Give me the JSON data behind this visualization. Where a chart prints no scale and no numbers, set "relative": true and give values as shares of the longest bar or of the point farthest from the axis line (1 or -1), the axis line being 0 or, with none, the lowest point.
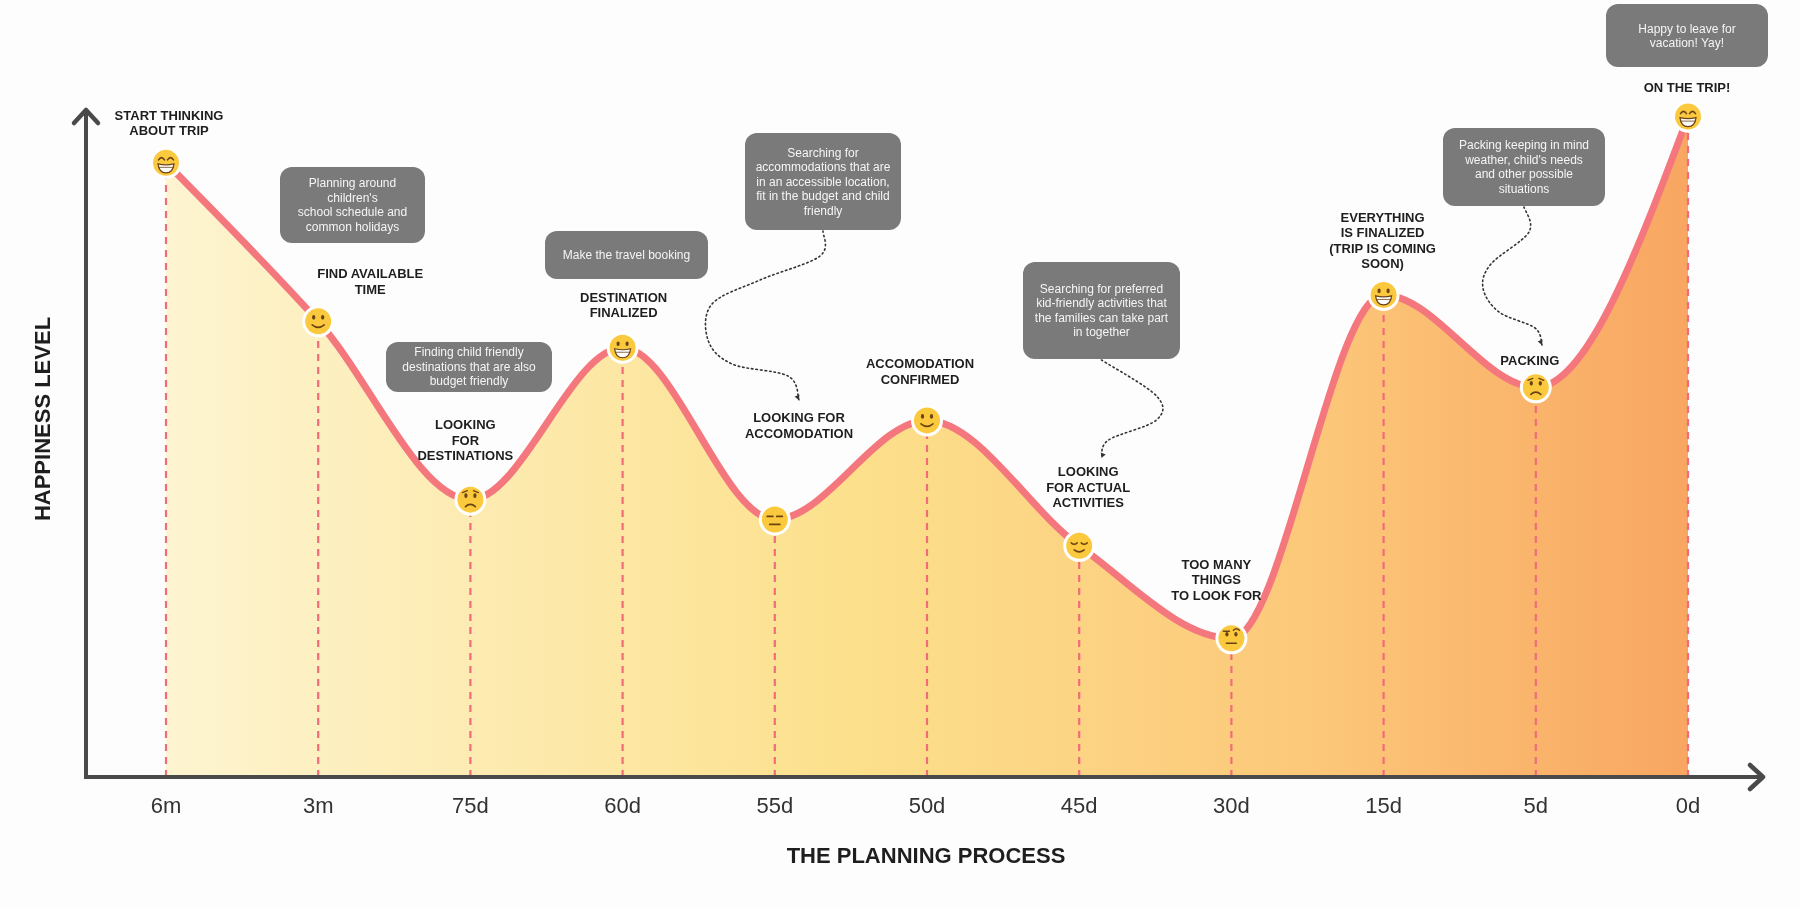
{
  "chart_data": {
    "type": "area",
    "xlabel": "THE PLANNING PROCESS",
    "ylabel": "HAPPINESS LEVEL",
    "relative": true,
    "tick_labels": "x",
    "categories": [
      "6m",
      "3m",
      "75d",
      "60d",
      "55d",
      "50d",
      "45d",
      "30d",
      "15d",
      "5d",
      "0d"
    ],
    "values": [
      0.93,
      0.69,
      0.42,
      0.65,
      0.39,
      0.54,
      0.35,
      0.21,
      0.73,
      0.59,
      1
    ],
    "color": "#f4777e",
    "ref_lines": [
      {
        "axis": "x",
        "value": "6m",
        "color": "#f26b7a",
        "line_style": "dashed"
      },
      {
        "axis": "x",
        "value": "3m",
        "color": "#f26b7a",
        "line_style": "dashed"
      },
      {
        "axis": "x",
        "value": "75d",
        "color": "#f26b7a",
        "line_style": "dashed"
      },
      {
        "axis": "x",
        "value": "60d",
        "color": "#f26b7a",
        "line_style": "dashed"
      },
      {
        "axis": "x",
        "value": "55d",
        "color": "#f26b7a",
        "line_style": "dashed"
      },
      {
        "axis": "x",
        "value": "50d",
        "color": "#f26b7a",
        "line_style": "dashed"
      },
      {
        "axis": "x",
        "value": "45d",
        "color": "#f26b7a",
        "line_style": "dashed"
      },
      {
        "axis": "x",
        "value": "30d",
        "color": "#f26b7a",
        "line_style": "dashed"
      },
      {
        "axis": "x",
        "value": "15d",
        "color": "#f26b7a",
        "line_style": "dashed"
      },
      {
        "axis": "x",
        "value": "5d",
        "color": "#f26b7a",
        "line_style": "dashed"
      },
      {
        "axis": "x",
        "value": "0d",
        "color": "#f26b7a",
        "line_style": "dashed"
      }
    ],
    "annotations": [
      {
        "text": "START THINKING\nABOUT TRIP",
        "x": "6m",
        "y": 0.93
      },
      {
        "text": "FIND AVAILABLE\nTIME",
        "x": "3m",
        "y": 0.69
      },
      {
        "text": "LOOKING\nFOR\nDESTINATIONS",
        "x": "75d",
        "y": 0.42
      },
      {
        "text": "DESTINATION\nFINALIZED",
        "x": "60d",
        "y": 0.65
      },
      "LOOKING FOR\nACCOMODATION",
      {
        "text": "ACCOMODATION\nCONFIRMED",
        "x": "50d",
        "y": 0.54
      },
      {
        "text": "LOOKING\nFOR ACTUAL\nACTIVITIES",
        "x": "45d",
        "y": 0.35
      },
      {
        "text": "TOO MANY\nTHINGS\nTO LOOK FOR",
        "x": "30d",
        "y": 0.21
      },
      {
        "text": "EVERYTHING\nIS FINALIZED\n(TRIP IS COMING\nSOON)",
        "x": "15d",
        "y": 0.73
      },
      {
        "text": "PACKING",
        "x": "5d",
        "y": 0.59
      },
      {
        "text": "ON THE TRIP!",
        "x": "0d",
        "y": 1
      },
      "Planning around\nchildren's\nschool schedule and\ncommon holidays",
      "Finding child friendly\ndestinations that are also\nbudget friendly",
      "Make the travel booking",
      "Searching for\naccommodations that are\nin an accessible location,\nfit in the budget and child\nfriendly",
      "Searching for preferred\nkid-friendly activities that\nthe families can take part\nin together",
      "Packing keeping in mind\nweather, child's needs\nand other possible\nsituations",
      "Happy to leave for\nvacation! Yay!"
    ]
  }
}
